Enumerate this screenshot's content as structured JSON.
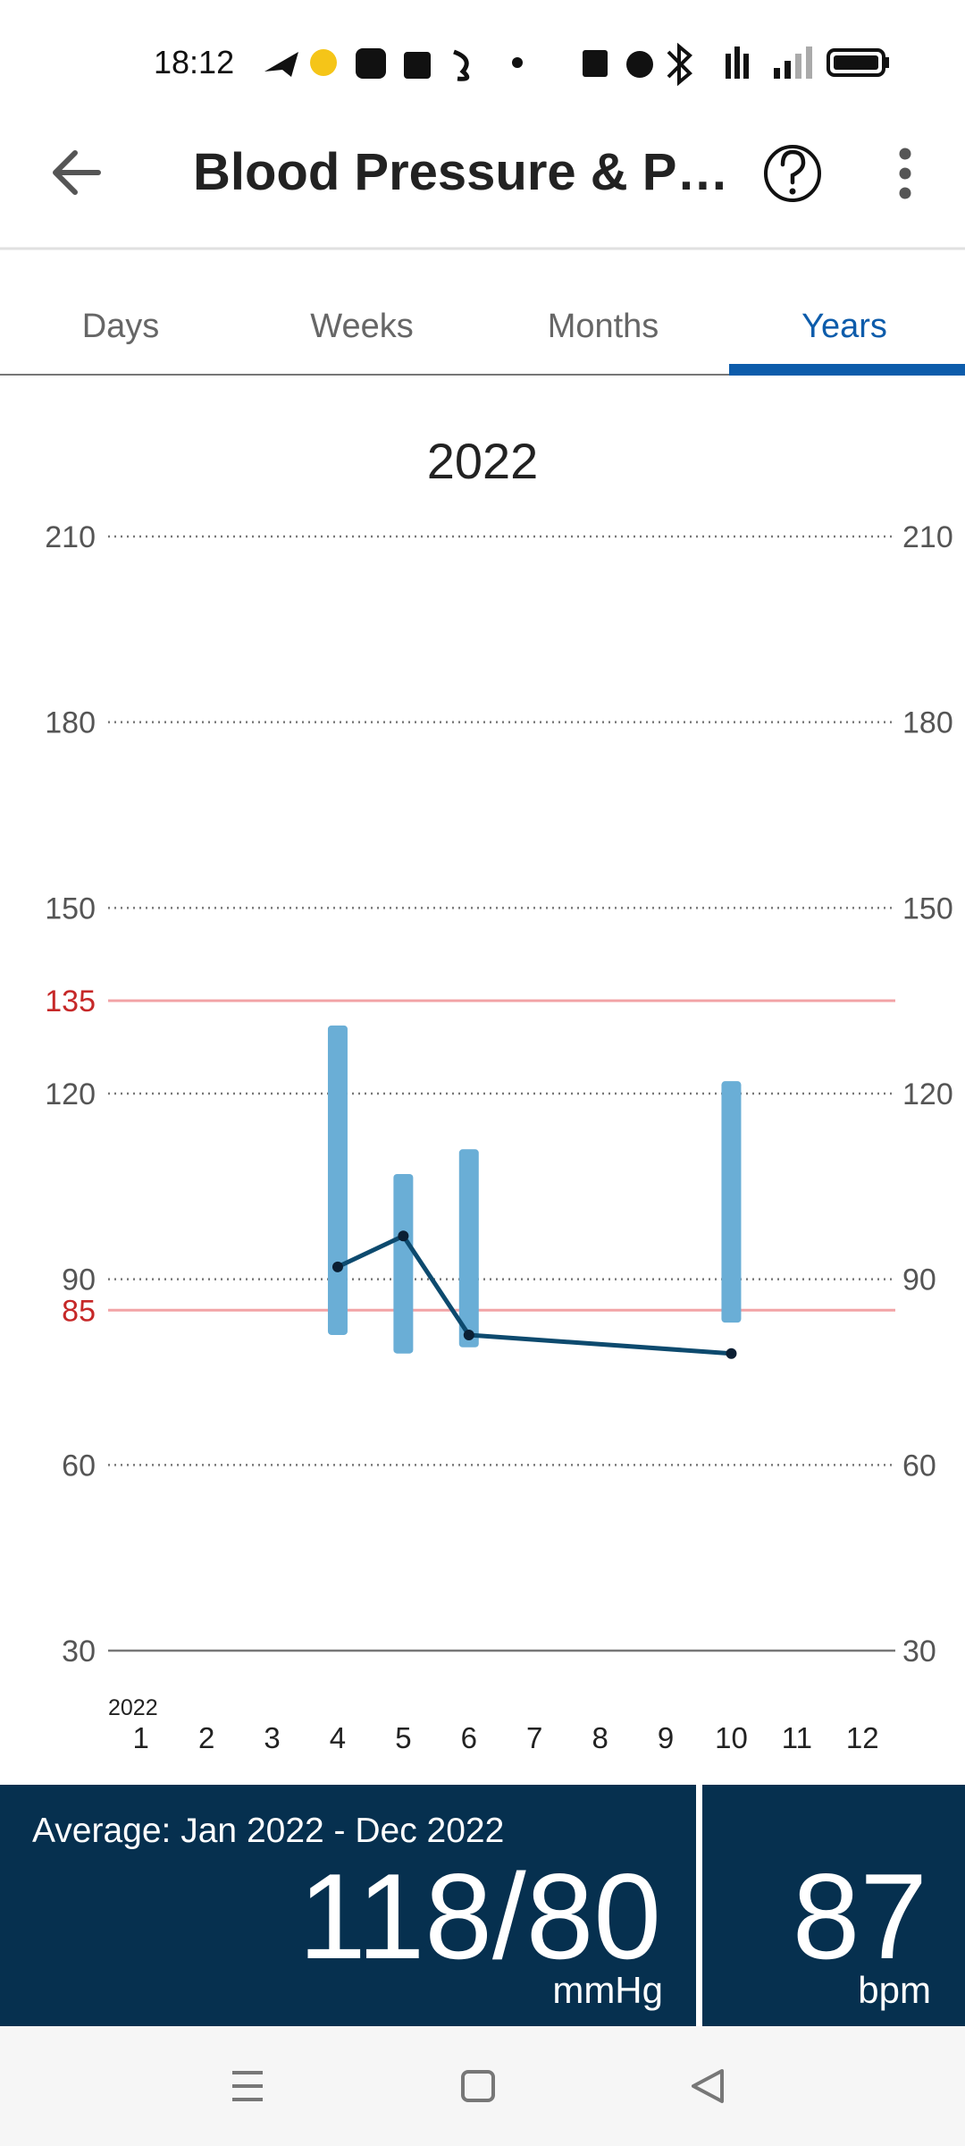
{
  "status_bar": {
    "time": "18:12"
  },
  "app_bar": {
    "title": "Blood Pressure & P…"
  },
  "tabs": {
    "items": [
      "Days",
      "Weeks",
      "Months",
      "Years"
    ],
    "selected": 3
  },
  "chart_data": {
    "type": "range_line",
    "title": "2022",
    "x_year_label": "2022",
    "xlim": [
      0.5,
      12.5
    ],
    "xticks": [
      1,
      2,
      3,
      4,
      5,
      6,
      7,
      8,
      9,
      10,
      11,
      12
    ],
    "ylim": [
      30,
      210
    ],
    "yticks": [
      30,
      60,
      90,
      120,
      150,
      180,
      210
    ],
    "y2lim": [
      30,
      210
    ],
    "y2ticks": [
      30,
      60,
      90,
      120,
      150,
      180,
      210
    ],
    "grid": true,
    "reference_lines": [
      {
        "value": 135,
        "color": "#f2a3a6",
        "label_color": "#c62828"
      },
      {
        "value": 85,
        "color": "#f2a3a6",
        "label_color": "#c62828"
      }
    ],
    "series": [
      {
        "type": "range",
        "color": "#6aaed6",
        "x": [
          4,
          5,
          6,
          10
        ],
        "low": [
          81,
          78,
          79,
          83
        ],
        "high": [
          131,
          107,
          111,
          122
        ]
      },
      {
        "type": "line",
        "color": "#0d4a6e",
        "axis": "y2",
        "x": [
          4,
          5,
          6,
          10
        ],
        "values": [
          92,
          97,
          81,
          78
        ]
      }
    ]
  },
  "summary": {
    "label": "Average: Jan 2022 - Dec 2022",
    "bp": "118/80",
    "bp_unit": "mmHg",
    "pulse": 87,
    "pulse_unit": "bpm"
  }
}
